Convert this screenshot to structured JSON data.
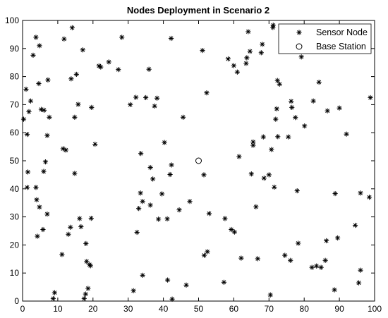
{
  "chart_data": {
    "type": "scatter",
    "title": "Nodes Deployment in Scenario 2",
    "xlabel": "",
    "ylabel": "",
    "xlim": [
      0,
      100
    ],
    "ylim": [
      0,
      100
    ],
    "xticks": [
      0,
      10,
      20,
      30,
      40,
      50,
      60,
      70,
      80,
      90,
      100
    ],
    "yticks": [
      0,
      10,
      20,
      30,
      40,
      50,
      60,
      70,
      80,
      90,
      100
    ],
    "grid": false,
    "legend": "top-right",
    "series": [
      {
        "name": "Sensor Node",
        "marker": "asterisk",
        "color": "#000000",
        "points": [
          [
            0.3,
            64.8
          ],
          [
            1,
            75.5
          ],
          [
            1.3,
            59.4
          ],
          [
            1.3,
            40.5
          ],
          [
            1.5,
            46
          ],
          [
            1.8,
            67.5
          ],
          [
            2.3,
            71.3
          ],
          [
            3,
            87.6
          ],
          [
            3.8,
            94
          ],
          [
            3.8,
            40.5
          ],
          [
            4,
            36.1
          ],
          [
            4.2,
            23.1
          ],
          [
            4.6,
            77.5
          ],
          [
            4.8,
            91
          ],
          [
            4.8,
            33.5
          ],
          [
            5.3,
            68.3
          ],
          [
            5.8,
            25.5
          ],
          [
            6,
            46.2
          ],
          [
            6.1,
            68
          ],
          [
            6.5,
            49.6
          ],
          [
            7,
            59
          ],
          [
            7,
            31
          ],
          [
            7.2,
            78.8
          ],
          [
            7.6,
            65.5
          ],
          [
            8.7,
            0.9
          ],
          [
            9.1,
            3
          ],
          [
            11.2,
            16.6
          ],
          [
            11.5,
            54.3
          ],
          [
            11.8,
            93.4
          ],
          [
            12.3,
            53.8
          ],
          [
            13,
            23.8
          ],
          [
            13.6,
            26.3
          ],
          [
            13.8,
            79.2
          ],
          [
            14.1,
            97.4
          ],
          [
            14.8,
            45.5
          ],
          [
            14.8,
            65.5
          ],
          [
            15.3,
            80.8
          ],
          [
            15.8,
            70.1
          ],
          [
            16.2,
            29.4
          ],
          [
            16.6,
            26.5
          ],
          [
            17.1,
            89.5
          ],
          [
            17.5,
            0.9
          ],
          [
            17.9,
            2.5
          ],
          [
            18,
            20.5
          ],
          [
            18.2,
            14.1
          ],
          [
            18.6,
            4.5
          ],
          [
            19,
            13
          ],
          [
            19.3,
            12.6
          ],
          [
            19.5,
            29.5
          ],
          [
            19.6,
            69
          ],
          [
            20.6,
            55.9
          ],
          [
            21.7,
            83.8
          ],
          [
            22.2,
            83.4
          ],
          [
            24.5,
            85.2
          ],
          [
            27.2,
            82.5
          ],
          [
            28.2,
            94
          ],
          [
            30.6,
            70
          ],
          [
            31.5,
            3.7
          ],
          [
            32.2,
            72.6
          ],
          [
            32.5,
            24.5
          ],
          [
            33,
            33
          ],
          [
            33.5,
            38.5
          ],
          [
            33.6,
            52.6
          ],
          [
            34.1,
            35.5
          ],
          [
            34.1,
            9.2
          ],
          [
            35,
            72.5
          ],
          [
            35.9,
            82.6
          ],
          [
            36.3,
            34.2
          ],
          [
            36.3,
            47.6
          ],
          [
            37,
            43.5
          ],
          [
            37.5,
            69.5
          ],
          [
            38.2,
            72.3
          ],
          [
            38.6,
            29.2
          ],
          [
            39.6,
            38.2
          ],
          [
            40.3,
            56.5
          ],
          [
            41.2,
            7.5
          ],
          [
            41.1,
            29.3
          ],
          [
            41.9,
            45.1
          ],
          [
            42.3,
            48.5
          ],
          [
            42.2,
            93.6
          ],
          [
            42.5,
            0.7
          ],
          [
            44.5,
            32.5
          ],
          [
            45.6,
            65.5
          ],
          [
            46.5,
            5.7
          ],
          [
            47.5,
            35.5
          ],
          [
            51.1,
            89.3
          ],
          [
            51.5,
            45
          ],
          [
            51.6,
            16.3
          ],
          [
            52.3,
            74.2
          ],
          [
            52.5,
            17.6
          ],
          [
            53,
            31.2
          ],
          [
            57.2,
            6.7
          ],
          [
            57.5,
            29.4
          ],
          [
            58.4,
            86.3
          ],
          [
            59.3,
            25.5
          ],
          [
            60,
            83.9
          ],
          [
            60.2,
            24.6
          ],
          [
            61,
            81.6
          ],
          [
            61.5,
            51.5
          ],
          [
            62.1,
            15.3
          ],
          [
            63.5,
            84.7
          ],
          [
            63.7,
            86.7
          ],
          [
            64.1,
            96
          ],
          [
            64.6,
            89
          ],
          [
            65,
            45.3
          ],
          [
            65.5,
            56.7
          ],
          [
            65.5,
            55.5
          ],
          [
            66.3,
            33.6
          ],
          [
            66.8,
            15.1
          ],
          [
            67.8,
            88.5
          ],
          [
            68.1,
            91.5
          ],
          [
            68.4,
            58.5
          ],
          [
            68.6,
            43.8
          ],
          [
            70,
            45
          ],
          [
            70.4,
            2.2
          ],
          [
            70.7,
            54
          ],
          [
            71.1,
            97.5
          ],
          [
            71.2,
            98.3
          ],
          [
            71.5,
            40.6
          ],
          [
            71.9,
            64.8
          ],
          [
            72.2,
            68.5
          ],
          [
            72.4,
            78.6
          ],
          [
            72.5,
            58.6
          ],
          [
            73,
            77.3
          ],
          [
            74.5,
            16.3
          ],
          [
            75.5,
            58.5
          ],
          [
            76.1,
            14.5
          ],
          [
            76.3,
            71.2
          ],
          [
            76.5,
            69
          ],
          [
            77.5,
            65.4
          ],
          [
            78,
            39.3
          ],
          [
            78.3,
            20.6
          ],
          [
            79.2,
            87
          ],
          [
            80.1,
            62.4
          ],
          [
            82.2,
            12
          ],
          [
            82.6,
            71.3
          ],
          [
            83.5,
            12.5
          ],
          [
            84.2,
            78
          ],
          [
            84.8,
            12
          ],
          [
            86,
            14.5
          ],
          [
            86.3,
            21.5
          ],
          [
            86.6,
            67.8
          ],
          [
            88.6,
            4
          ],
          [
            88.8,
            38.3
          ],
          [
            89.5,
            22.5
          ],
          [
            90,
            68.8
          ],
          [
            92,
            59.5
          ],
          [
            94.5,
            27
          ],
          [
            95.5,
            6.5
          ],
          [
            96,
            11
          ],
          [
            96,
            38.5
          ],
          [
            98.8,
            72.5
          ],
          [
            98.5,
            37
          ]
        ]
      },
      {
        "name": "Base Station",
        "marker": "circle",
        "color": "#000000",
        "points": [
          [
            50,
            50
          ]
        ]
      }
    ]
  }
}
